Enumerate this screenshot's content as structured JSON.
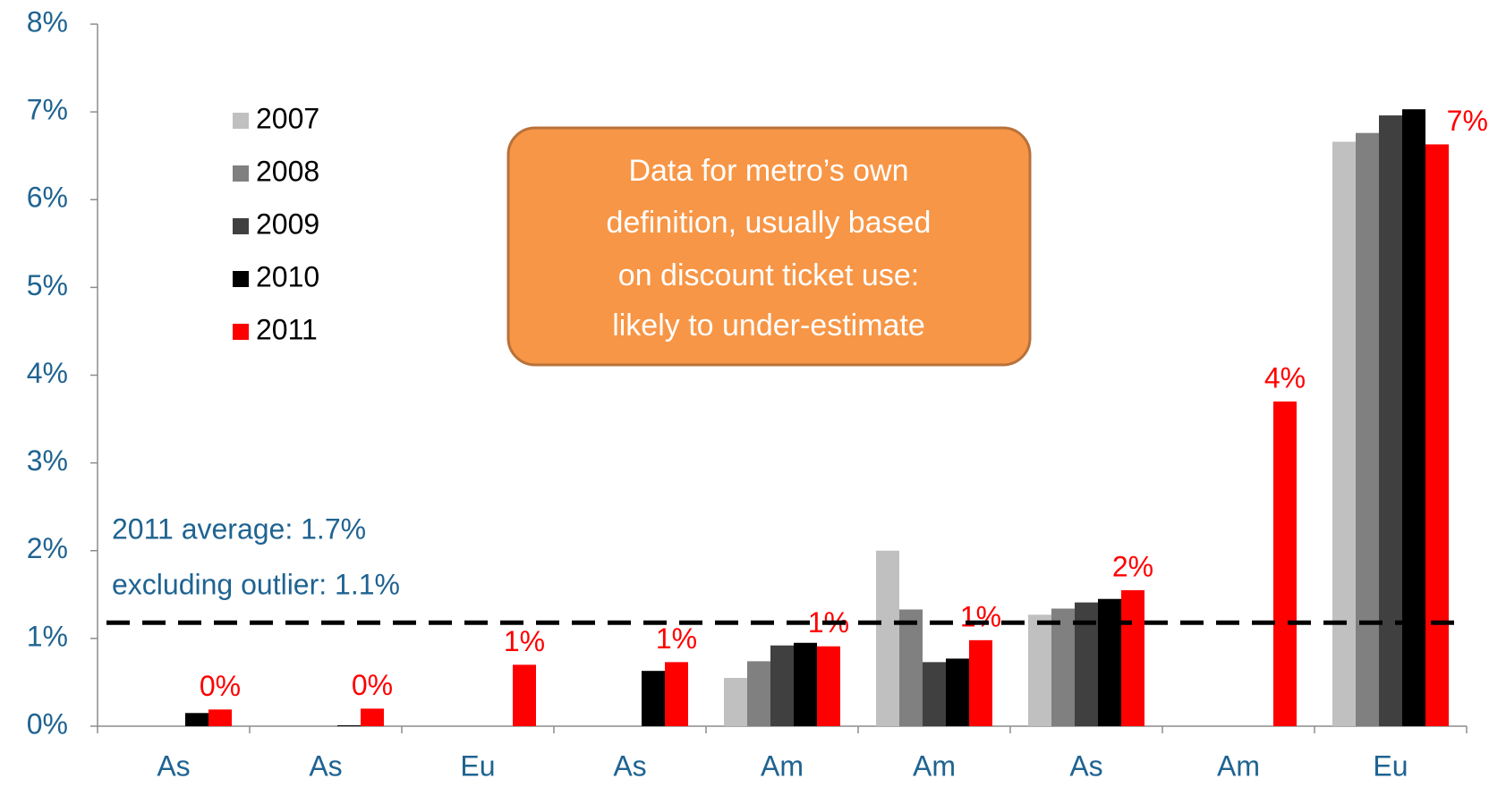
{
  "chart_data": {
    "type": "bar",
    "categories": [
      "As",
      "As",
      "Eu",
      "As",
      "Am",
      "Am",
      "As",
      "Am",
      "Eu"
    ],
    "series": [
      {
        "name": "2007",
        "color": "#c0c0c0",
        "values": [
          null,
          null,
          null,
          null,
          0.55,
          2.0,
          1.27,
          null,
          6.66
        ]
      },
      {
        "name": "2008",
        "color": "#808080",
        "values": [
          null,
          null,
          null,
          null,
          0.74,
          1.33,
          1.34,
          null,
          6.76
        ]
      },
      {
        "name": "2009",
        "color": "#404040",
        "values": [
          null,
          null,
          null,
          null,
          0.92,
          0.73,
          1.41,
          null,
          6.96
        ]
      },
      {
        "name": "2010",
        "color": "#000000",
        "values": [
          0.15,
          0.01,
          null,
          0.63,
          0.95,
          0.77,
          1.45,
          null,
          7.03
        ]
      },
      {
        "name": "2011",
        "color": "#ff0000",
        "values": [
          0.19,
          0.2,
          0.7,
          0.73,
          0.91,
          0.98,
          1.55,
          3.7,
          6.63
        ],
        "value_labels": [
          "0%",
          "0%",
          "1%",
          "1%",
          "1%",
          "1%",
          "2%",
          "4%",
          "7%"
        ]
      }
    ],
    "ylim": [
      0,
      8
    ],
    "yticks": [
      {
        "value": 0,
        "label": "0%"
      },
      {
        "value": 1,
        "label": "1%"
      },
      {
        "value": 2,
        "label": "2%"
      },
      {
        "value": 3,
        "label": "3%"
      },
      {
        "value": 4,
        "label": "4%"
      },
      {
        "value": 5,
        "label": "5%"
      },
      {
        "value": 6,
        "label": "6%"
      },
      {
        "value": 7,
        "label": "7%"
      },
      {
        "value": 8,
        "label": "8%"
      }
    ],
    "reference_line": 1.18,
    "annotations": [
      "2011 average: 1.7%",
      "excluding outlier: 1.1%"
    ],
    "note_box": [
      "Data for metro’s own",
      "definition, usually based",
      "on discount ticket use:",
      "likely to under-estimate"
    ],
    "legend": "upper left"
  }
}
